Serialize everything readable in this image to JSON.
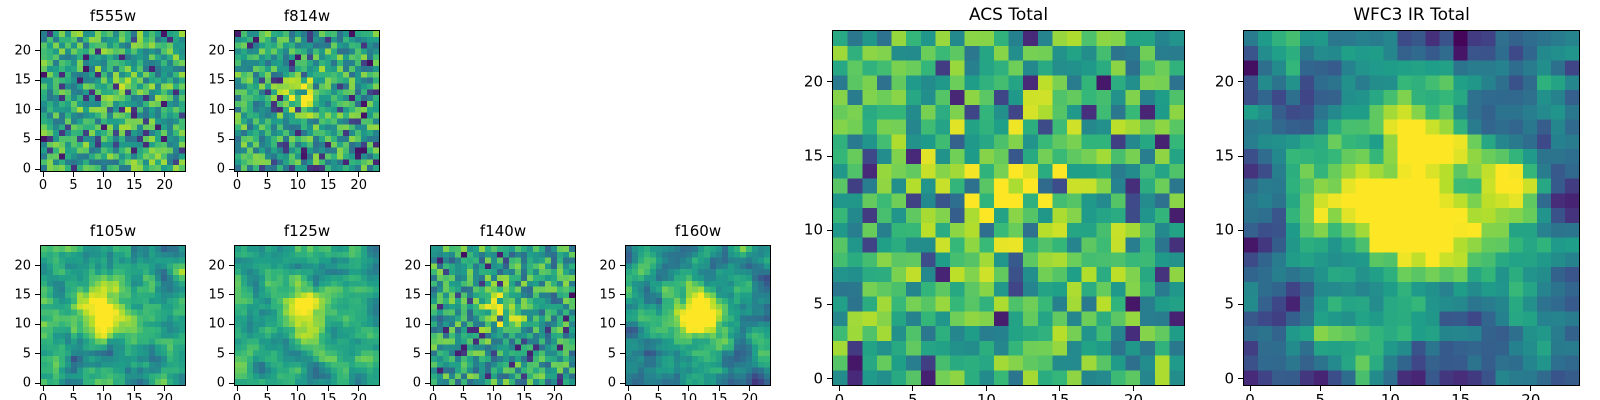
{
  "figure": {
    "background": "#ffffff",
    "axis_color": "#000000",
    "text_color": "#000000"
  },
  "colormap": {
    "name": "viridis",
    "stops": [
      "#440154",
      "#482878",
      "#3e4989",
      "#31688e",
      "#26828e",
      "#1f9e89",
      "#35b779",
      "#6ece58",
      "#b5de2b",
      "#fde725"
    ]
  },
  "chart_data": [
    {
      "type": "heatmap",
      "title": "f555w",
      "grid": 24,
      "xticks": [
        0,
        5,
        10,
        15,
        20
      ],
      "yticks": [
        0,
        5,
        10,
        15,
        20
      ],
      "xlim": [
        -0.5,
        23.5
      ],
      "ylim": [
        -0.5,
        23.5
      ],
      "colormap": "viridis",
      "seed": 101,
      "noise": {
        "base": 0.62,
        "spread": 0.24,
        "dark_prob": 0.08
      },
      "source": {
        "cx": 11.5,
        "cy": 12.5,
        "sigma": 2.5,
        "amp": 0.1
      },
      "smooth": 0,
      "gain": 1.0
    },
    {
      "type": "heatmap",
      "title": "f814w",
      "grid": 24,
      "xticks": [
        0,
        5,
        10,
        15,
        20
      ],
      "yticks": [
        0,
        5,
        10,
        15,
        20
      ],
      "xlim": [
        -0.5,
        23.5
      ],
      "ylim": [
        -0.5,
        23.5
      ],
      "colormap": "viridis",
      "seed": 202,
      "noise": {
        "base": 0.6,
        "spread": 0.24,
        "dark_prob": 0.09
      },
      "source": {
        "cx": 11.0,
        "cy": 13.0,
        "sigma": 2.2,
        "amp": 0.35
      },
      "smooth": 0,
      "gain": 1.0
    },
    {
      "type": "heatmap",
      "title": "f105w",
      "grid": 24,
      "xticks": [
        0,
        5,
        10,
        15,
        20
      ],
      "yticks": [
        0,
        5,
        10,
        15,
        20
      ],
      "xlim": [
        -0.5,
        23.5
      ],
      "ylim": [
        -0.5,
        23.5
      ],
      "colormap": "viridis",
      "seed": 303,
      "noise": {
        "base": 0.58,
        "spread": 0.3,
        "dark_prob": 0.07
      },
      "source": {
        "cx": 10.5,
        "cy": 12.5,
        "sigma": 3.0,
        "amp": 0.38
      },
      "smooth": 1,
      "gain": 1.35
    },
    {
      "type": "heatmap",
      "title": "f125w",
      "grid": 24,
      "xticks": [
        0,
        5,
        10,
        15,
        20
      ],
      "yticks": [
        0,
        5,
        10,
        15,
        20
      ],
      "xlim": [
        -0.5,
        23.5
      ],
      "ylim": [
        -0.5,
        23.5
      ],
      "colormap": "viridis",
      "seed": 404,
      "noise": {
        "base": 0.58,
        "spread": 0.3,
        "dark_prob": 0.07
      },
      "source": {
        "cx": 11.0,
        "cy": 12.0,
        "sigma": 3.0,
        "amp": 0.33
      },
      "smooth": 1,
      "gain": 1.35
    },
    {
      "type": "heatmap",
      "title": "f140w",
      "grid": 24,
      "xticks": [
        0,
        5,
        10,
        15,
        20
      ],
      "yticks": [
        0,
        5,
        10,
        15,
        20
      ],
      "xlim": [
        -0.5,
        23.5
      ],
      "ylim": [
        -0.5,
        23.5
      ],
      "colormap": "viridis",
      "seed": 505,
      "noise": {
        "base": 0.57,
        "spread": 0.26,
        "dark_prob": 0.08
      },
      "source": {
        "cx": 11.5,
        "cy": 12.5,
        "sigma": 2.6,
        "amp": 0.3
      },
      "smooth": 0,
      "gain": 1.0
    },
    {
      "type": "heatmap",
      "title": "f160w",
      "grid": 24,
      "xticks": [
        0,
        5,
        10,
        15,
        20
      ],
      "yticks": [
        0,
        5,
        10,
        15,
        20
      ],
      "xlim": [
        -0.5,
        23.5
      ],
      "ylim": [
        -0.5,
        23.5
      ],
      "colormap": "viridis",
      "seed": 606,
      "noise": {
        "base": 0.52,
        "spread": 0.3,
        "dark_prob": 0.06
      },
      "source": {
        "cx": 11.5,
        "cy": 12.0,
        "sigma": 3.0,
        "amp": 0.52
      },
      "smooth": 1,
      "gain": 1.4
    },
    {
      "type": "heatmap",
      "title": "ACS Total",
      "grid": 24,
      "xticks": [
        0,
        5,
        10,
        15,
        20
      ],
      "yticks": [
        0,
        5,
        10,
        15,
        20
      ],
      "xlim": [
        -0.5,
        23.5
      ],
      "ylim": [
        -0.5,
        23.5
      ],
      "colormap": "viridis",
      "seed": 707,
      "noise": {
        "base": 0.62,
        "spread": 0.26,
        "dark_prob": 0.08
      },
      "source": {
        "cx": 11.5,
        "cy": 12.5,
        "sigma": 4.5,
        "amp": 0.2
      },
      "smooth": 0,
      "gain": 1.0
    },
    {
      "type": "heatmap",
      "title": "WFC3 IR Total",
      "grid": 24,
      "xticks": [
        0,
        5,
        10,
        15,
        20
      ],
      "yticks": [
        0,
        5,
        10,
        15,
        20
      ],
      "xlim": [
        -0.5,
        23.5
      ],
      "ylim": [
        -0.5,
        23.5
      ],
      "colormap": "viridis",
      "seed": 808,
      "noise": {
        "base": 0.48,
        "spread": 0.52,
        "dark_prob": 0.12
      },
      "source": {
        "cx": 11.0,
        "cy": 12.5,
        "sigma": 4.2,
        "amp": 0.55
      },
      "smooth": 1,
      "gain": 1.45
    }
  ]
}
